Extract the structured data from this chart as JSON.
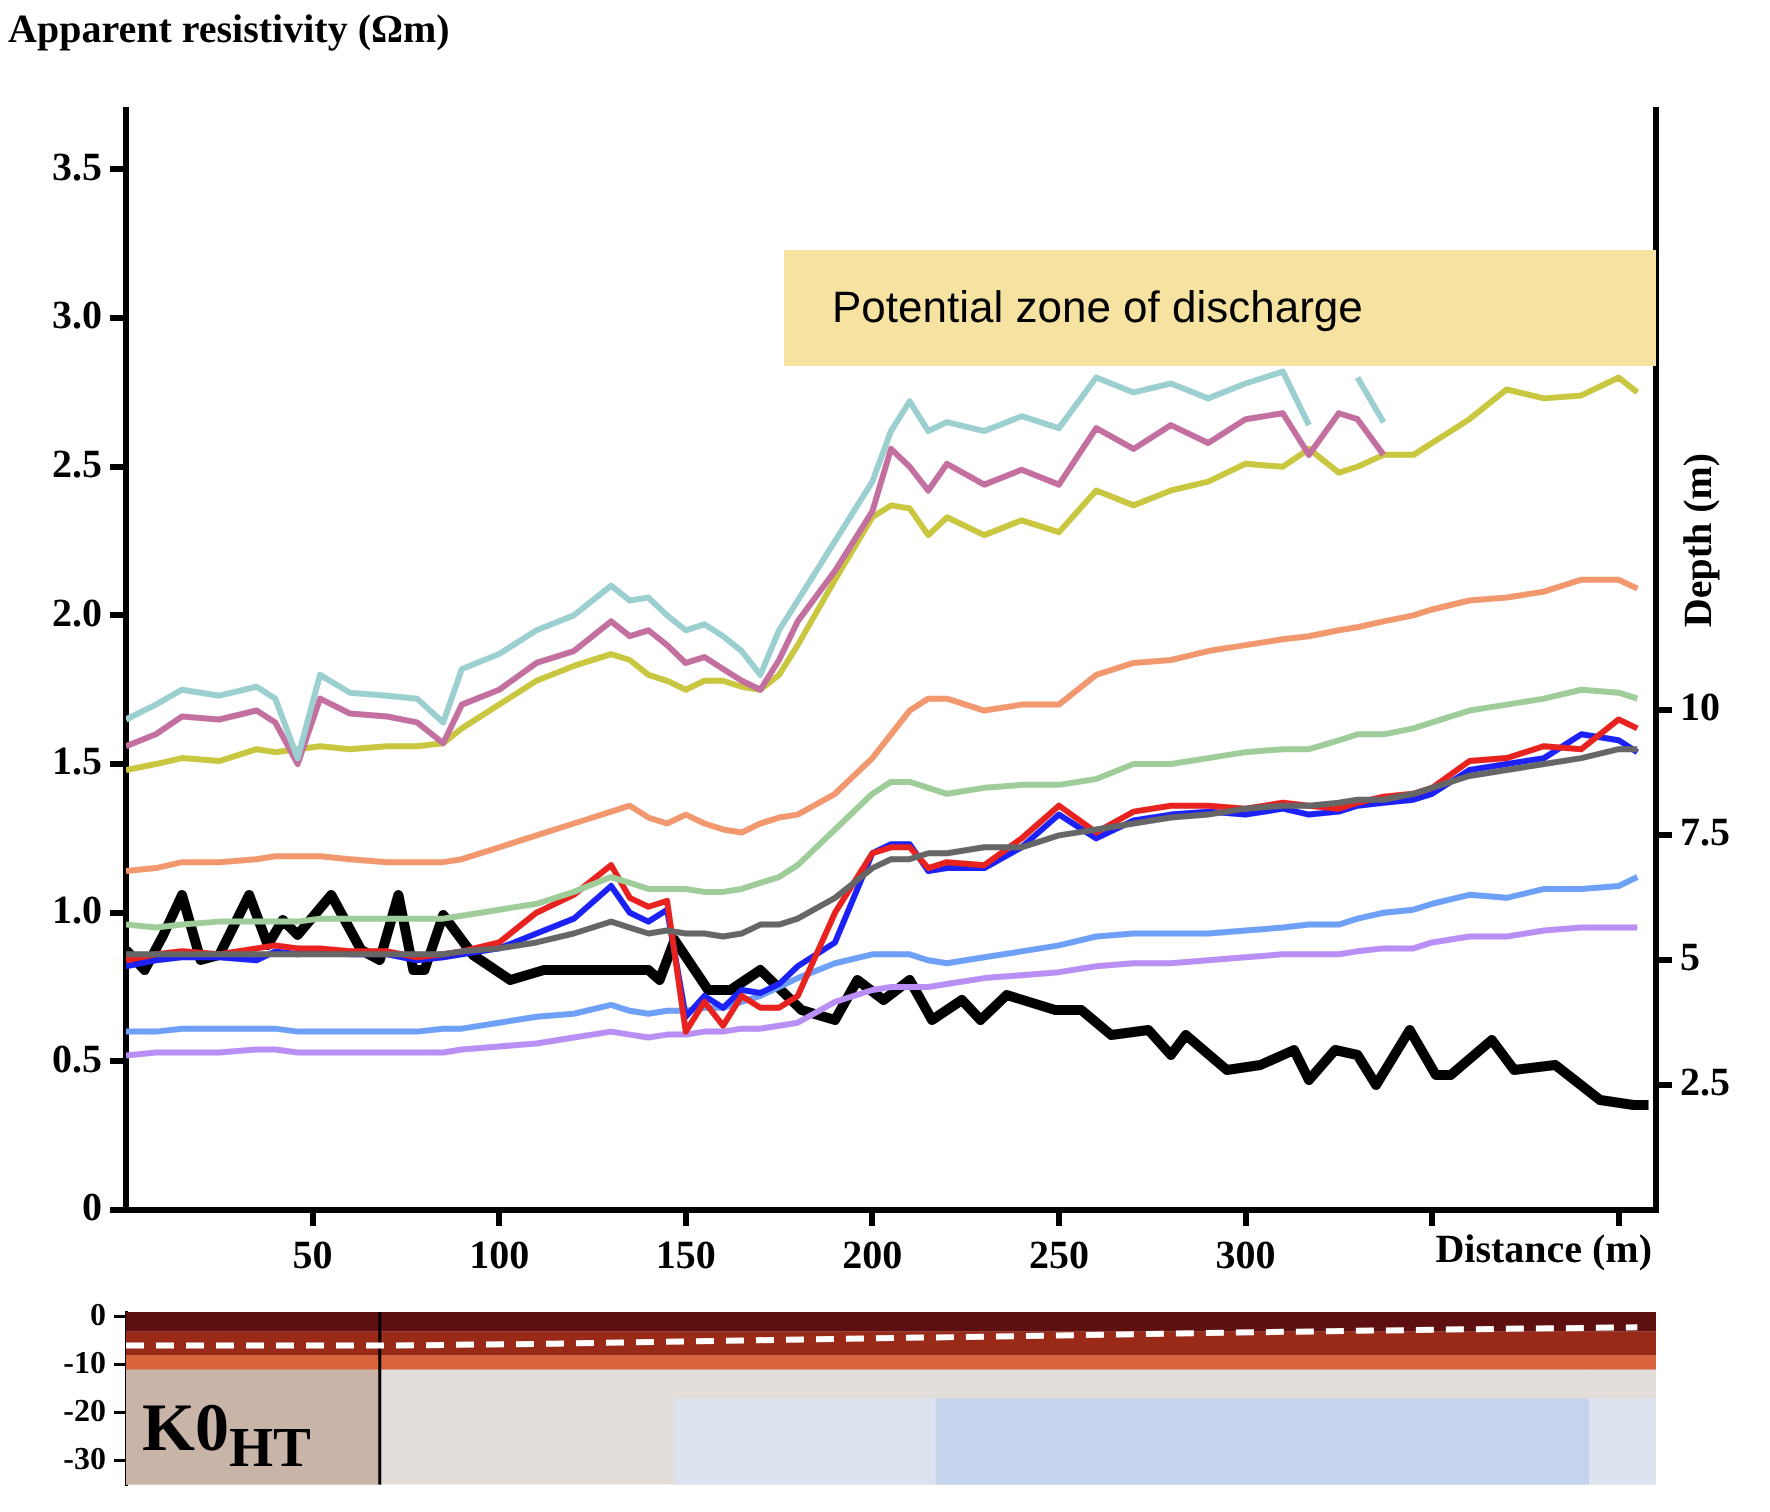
{
  "chart_data": [
    {
      "type": "line",
      "ylabel": "Apparent resistivity (Ωm)",
      "y2label": "Depth (m)",
      "xlabel": "Distance (m)",
      "marker": "none",
      "annotations": [
        "Potential zone of discharge"
      ],
      "xlim": [
        0,
        410
      ],
      "xticks": [
        50,
        100,
        150,
        200,
        250,
        300,
        {
          "value": 350,
          "label": null
        },
        {
          "value": 400,
          "label": null
        }
      ],
      "ylim": [
        0,
        3.7
      ],
      "yticks": [
        0,
        0.5,
        {
          "value": 1,
          "label": "1.0"
        },
        1.5,
        {
          "value": 2,
          "label": "2.0"
        },
        2.5,
        {
          "value": 3,
          "label": "3.0"
        },
        3.5
      ],
      "y2lim": [
        0,
        22
      ],
      "y2ticks": [
        2.5,
        5,
        7.5,
        10
      ],
      "x": [
        0,
        8,
        15,
        25,
        35,
        40,
        46,
        52,
        60,
        70,
        78,
        85,
        90,
        100,
        110,
        120,
        130,
        135,
        140,
        145,
        150,
        155,
        160,
        165,
        170,
        175,
        180,
        190,
        200,
        205,
        210,
        215,
        220,
        230,
        240,
        250,
        260,
        270,
        280,
        290,
        300,
        310,
        317,
        325,
        330,
        337,
        345,
        350,
        360,
        370,
        380,
        390,
        400,
        405
      ],
      "series": [
        {
          "color": "#9ccfd0",
          "values": [
            1.65,
            1.7,
            1.75,
            1.73,
            1.76,
            1.72,
            1.52,
            1.8,
            1.74,
            1.73,
            1.72,
            1.64,
            1.82,
            1.87,
            1.95,
            2.0,
            2.1,
            2.05,
            2.06,
            2.0,
            1.95,
            1.97,
            1.93,
            1.88,
            1.8,
            1.95,
            2.05,
            2.25,
            2.45,
            2.62,
            2.72,
            2.62,
            2.65,
            2.62,
            2.67,
            2.63,
            2.8,
            2.75,
            2.78,
            2.73,
            2.78,
            2.82,
            2.64,
            null,
            2.8,
            2.65,
            null,
            null,
            null,
            null,
            null,
            null,
            null,
            null
          ]
        },
        {
          "color": "#c36f9f",
          "values": [
            1.56,
            1.6,
            1.66,
            1.65,
            1.68,
            1.64,
            1.5,
            1.72,
            1.67,
            1.66,
            1.64,
            1.57,
            1.7,
            1.75,
            1.84,
            1.88,
            1.98,
            1.93,
            1.95,
            1.9,
            1.84,
            1.86,
            1.82,
            1.78,
            1.75,
            1.85,
            1.98,
            2.15,
            2.35,
            2.56,
            2.5,
            2.42,
            2.51,
            2.44,
            2.49,
            2.44,
            2.63,
            2.56,
            2.64,
            2.58,
            2.66,
            2.68,
            2.54,
            2.68,
            2.66,
            2.54,
            null,
            null,
            null,
            null,
            null,
            null,
            null,
            null
          ]
        },
        {
          "color": "#c9c63f",
          "values": [
            1.48,
            1.5,
            1.52,
            1.51,
            1.55,
            1.54,
            1.55,
            1.56,
            1.55,
            1.56,
            1.56,
            1.57,
            1.62,
            1.7,
            1.78,
            1.83,
            1.87,
            1.85,
            1.8,
            1.78,
            1.75,
            1.78,
            1.78,
            1.76,
            1.75,
            1.8,
            1.9,
            2.12,
            2.33,
            2.37,
            2.36,
            2.27,
            2.33,
            2.27,
            2.32,
            2.28,
            2.42,
            2.37,
            2.42,
            2.45,
            2.51,
            2.5,
            2.56,
            2.48,
            2.5,
            2.54,
            2.54,
            2.58,
            2.66,
            2.76,
            2.73,
            2.74,
            2.8,
            2.75
          ]
        },
        {
          "color": "#f2986e",
          "values": [
            1.14,
            1.15,
            1.17,
            1.17,
            1.18,
            1.19,
            1.19,
            1.19,
            1.18,
            1.17,
            1.17,
            1.17,
            1.18,
            1.22,
            1.26,
            1.3,
            1.34,
            1.36,
            1.32,
            1.3,
            1.33,
            1.3,
            1.28,
            1.27,
            1.3,
            1.32,
            1.33,
            1.4,
            1.52,
            1.6,
            1.68,
            1.72,
            1.72,
            1.68,
            1.7,
            1.7,
            1.8,
            1.84,
            1.85,
            1.88,
            1.9,
            1.92,
            1.93,
            1.95,
            1.96,
            1.98,
            2.0,
            2.02,
            2.05,
            2.06,
            2.08,
            2.12,
            2.12,
            2.09
          ]
        },
        {
          "color": "#9fcd9a",
          "values": [
            0.96,
            0.95,
            0.96,
            0.97,
            0.97,
            0.97,
            0.97,
            0.98,
            0.98,
            0.98,
            0.98,
            0.98,
            0.99,
            1.01,
            1.03,
            1.07,
            1.12,
            1.1,
            1.08,
            1.08,
            1.08,
            1.07,
            1.07,
            1.08,
            1.1,
            1.12,
            1.16,
            1.28,
            1.4,
            1.44,
            1.44,
            1.42,
            1.4,
            1.42,
            1.43,
            1.43,
            1.45,
            1.5,
            1.5,
            1.52,
            1.54,
            1.55,
            1.55,
            1.58,
            1.6,
            1.6,
            1.62,
            1.64,
            1.68,
            1.7,
            1.72,
            1.75,
            1.74,
            1.72
          ]
        },
        {
          "color": "#666666",
          "values": [
            0.86,
            0.86,
            0.86,
            0.86,
            0.86,
            0.86,
            0.86,
            0.86,
            0.86,
            0.86,
            0.86,
            0.86,
            0.87,
            0.88,
            0.9,
            0.93,
            0.97,
            0.95,
            0.93,
            0.94,
            0.93,
            0.93,
            0.92,
            0.93,
            0.96,
            0.96,
            0.98,
            1.05,
            1.15,
            1.18,
            1.18,
            1.2,
            1.2,
            1.22,
            1.22,
            1.26,
            1.28,
            1.3,
            1.32,
            1.33,
            1.35,
            1.36,
            1.36,
            1.37,
            1.38,
            1.38,
            1.4,
            1.42,
            1.46,
            1.48,
            1.5,
            1.52,
            1.55,
            1.55
          ]
        },
        {
          "color": "#e8231f",
          "values": [
            0.84,
            0.86,
            0.87,
            0.86,
            0.88,
            0.89,
            0.88,
            0.88,
            0.87,
            0.87,
            0.85,
            0.86,
            0.87,
            0.9,
            1.0,
            1.06,
            1.16,
            1.05,
            1.02,
            1.04,
            0.6,
            0.7,
            0.62,
            0.72,
            0.68,
            0.68,
            0.72,
            1.0,
            1.2,
            1.22,
            1.22,
            1.15,
            1.17,
            1.16,
            1.25,
            1.36,
            1.27,
            1.34,
            1.36,
            1.36,
            1.35,
            1.37,
            1.36,
            1.35,
            1.37,
            1.39,
            1.4,
            1.42,
            1.51,
            1.52,
            1.56,
            1.55,
            1.65,
            1.62
          ]
        },
        {
          "color": "#1c22f5",
          "values": [
            0.82,
            0.84,
            0.85,
            0.85,
            0.84,
            0.87,
            0.86,
            0.87,
            0.86,
            0.86,
            0.84,
            0.85,
            0.86,
            0.88,
            0.93,
            0.98,
            1.09,
            1.0,
            0.97,
            1.01,
            0.65,
            0.72,
            0.68,
            0.74,
            0.73,
            0.76,
            0.82,
            0.9,
            1.2,
            1.23,
            1.23,
            1.14,
            1.15,
            1.15,
            1.22,
            1.33,
            1.25,
            1.31,
            1.33,
            1.34,
            1.33,
            1.35,
            1.33,
            1.34,
            1.36,
            1.37,
            1.38,
            1.4,
            1.48,
            1.5,
            1.52,
            1.6,
            1.58,
            1.54
          ]
        },
        {
          "color": "#6fa0f8",
          "values": [
            0.6,
            0.6,
            0.61,
            0.61,
            0.61,
            0.61,
            0.6,
            0.6,
            0.6,
            0.6,
            0.6,
            0.61,
            0.61,
            0.63,
            0.65,
            0.66,
            0.69,
            0.67,
            0.66,
            0.67,
            0.67,
            0.68,
            0.68,
            0.7,
            0.72,
            0.75,
            0.78,
            0.83,
            0.86,
            0.86,
            0.86,
            0.84,
            0.83,
            0.85,
            0.87,
            0.89,
            0.92,
            0.93,
            0.93,
            0.93,
            0.94,
            0.95,
            0.96,
            0.96,
            0.98,
            1.0,
            1.01,
            1.03,
            1.06,
            1.05,
            1.08,
            1.08,
            1.09,
            1.12
          ]
        },
        {
          "color": "#b98ef5",
          "values": [
            0.52,
            0.53,
            0.53,
            0.53,
            0.54,
            0.54,
            0.53,
            0.53,
            0.53,
            0.53,
            0.53,
            0.53,
            0.54,
            0.55,
            0.56,
            0.58,
            0.6,
            0.59,
            0.58,
            0.59,
            0.59,
            0.6,
            0.6,
            0.61,
            0.61,
            0.62,
            0.63,
            0.7,
            0.74,
            0.75,
            0.75,
            0.75,
            0.76,
            0.78,
            0.79,
            0.8,
            0.82,
            0.83,
            0.83,
            0.84,
            0.85,
            0.86,
            0.86,
            0.86,
            0.87,
            0.88,
            0.88,
            0.9,
            0.92,
            0.92,
            0.94,
            0.95,
            0.95,
            0.95
          ]
        },
        {
          "color": "#000000",
          "axis": "y2",
          "x": [
            0,
            5,
            10,
            15,
            20,
            25,
            33,
            38,
            42,
            46,
            55,
            63,
            68,
            73,
            77,
            80,
            85,
            93,
            103,
            112,
            130,
            140,
            143,
            147,
            156,
            162,
            170,
            181,
            190,
            196,
            203,
            210,
            216,
            224,
            229,
            236,
            249,
            256,
            264,
            274,
            280,
            284,
            295,
            304,
            313,
            317,
            324,
            330,
            335,
            344,
            351,
            355,
            366,
            372,
            383,
            395,
            404,
            408
          ],
          "values": [
            5.2,
            4.8,
            5.5,
            6.3,
            5.0,
            5.1,
            6.3,
            5.3,
            5.8,
            5.5,
            6.3,
            5.2,
            5.0,
            6.3,
            4.8,
            4.8,
            5.9,
            5.1,
            4.6,
            4.8,
            4.8,
            4.8,
            4.6,
            5.4,
            4.4,
            4.4,
            4.8,
            4.0,
            3.8,
            4.6,
            4.2,
            4.6,
            3.8,
            4.2,
            3.8,
            4.3,
            4.0,
            4.0,
            3.5,
            3.6,
            3.1,
            3.5,
            2.8,
            2.9,
            3.2,
            2.6,
            3.2,
            3.1,
            2.5,
            3.6,
            2.7,
            2.7,
            3.4,
            2.8,
            2.9,
            2.2,
            2.1,
            2.1
          ]
        }
      ]
    },
    {
      "type": "line",
      "line_style": "dashed",
      "marker": "none",
      "tick_labels": "y",
      "xlim": [
        0,
        410
      ],
      "ylim": [
        -35,
        1
      ],
      "yticks": [
        0,
        -10,
        -20,
        -30
      ],
      "annotations": [
        "K0$_{HT}$"
      ],
      "bands": [
        {
          "axis": "x",
          "from": 147,
          "to": 410,
          "color": "#dde3ee"
        },
        {
          "axis": "x",
          "from": 217,
          "to": 392,
          "color": "#c4d4ec"
        },
        {
          "axis": "y",
          "from": -11,
          "to": -17,
          "color": "#e2ddd8"
        },
        {
          "axis": "x",
          "from": 0,
          "to": 68,
          "color": "#c9b4a8"
        },
        {
          "axis": "y",
          "from": -8,
          "to": -11,
          "color": "#d9633a"
        },
        {
          "axis": "y",
          "from": -3,
          "to": -8,
          "color": "#9a2a18"
        },
        {
          "axis": "y",
          "from": 1,
          "to": -3,
          "color": "#5e0f10"
        }
      ],
      "ref_lines": [
        {
          "axis": "x",
          "value": 68,
          "color": "#000000"
        }
      ],
      "x": [
        0,
        70,
        115,
        175,
        233,
        280,
        322,
        370,
        405
      ],
      "series": [
        {
          "color": "#ffffff",
          "values": [
            -6,
            -6,
            -5.6,
            -4.8,
            -4.1,
            -3.5,
            -3,
            -2.5,
            -2.2
          ]
        }
      ]
    }
  ]
}
